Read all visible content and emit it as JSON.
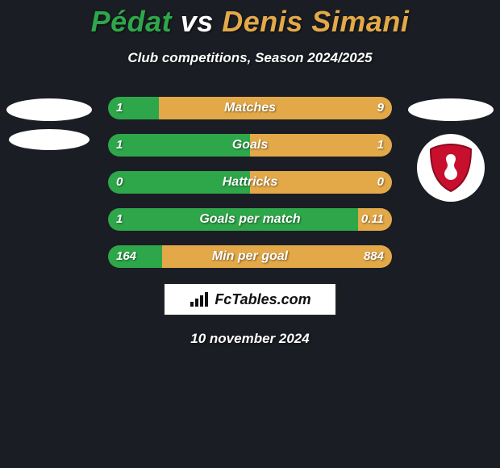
{
  "title": {
    "player1": "Pédat",
    "vs": "vs",
    "player2": "Denis Simani",
    "player1_color": "#2ea74a",
    "vs_color": "#ffffff",
    "player2_color": "#e3a948",
    "fontsize": 36
  },
  "subtitle": "Club competitions, Season 2024/2025",
  "bars": {
    "track_width": 352,
    "track_height": 28,
    "left_color": "#2ea74a",
    "right_color": "#e3a948",
    "label_fontsize": 16,
    "value_fontsize": 15,
    "rows": [
      {
        "label": "Matches",
        "left_val": "1",
        "right_val": "9",
        "left_pct": 18
      },
      {
        "label": "Goals",
        "left_val": "1",
        "right_val": "1",
        "left_pct": 50
      },
      {
        "label": "Hattricks",
        "left_val": "0",
        "right_val": "0",
        "left_pct": 50
      },
      {
        "label": "Goals per match",
        "left_val": "1",
        "right_val": "0.11",
        "left_pct": 88
      },
      {
        "label": "Min per goal",
        "left_val": "164",
        "right_val": "884",
        "left_pct": 19
      }
    ]
  },
  "brand": {
    "text": "FcTables.com"
  },
  "date": "10 november 2024",
  "avatars": {
    "left_placeholder_color": "#ffffff",
    "right_placeholder_color": "#ffffff",
    "club_shield_color": "#c8102e"
  },
  "colors": {
    "background": "#1a1d24",
    "text": "#ffffff"
  }
}
